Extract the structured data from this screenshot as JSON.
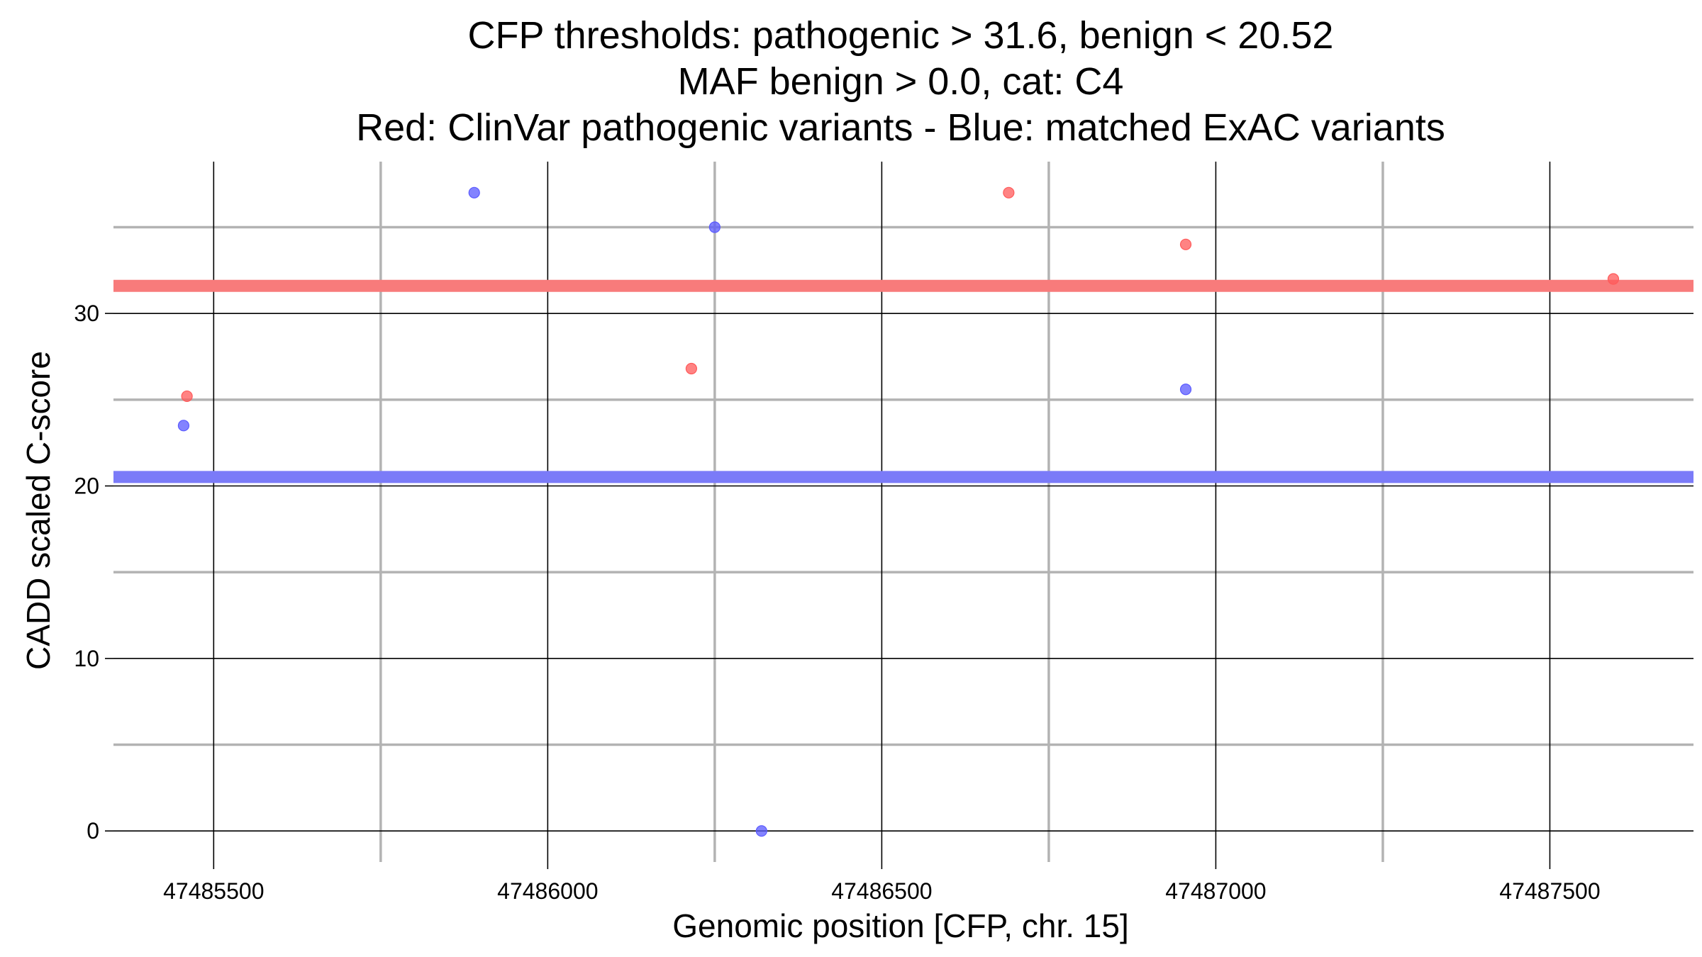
{
  "chart_data": {
    "type": "scatter",
    "title_lines": [
      "CFP thresholds: pathogenic > 31.6, benign < 20.52",
      "MAF benign > 0.0, cat: C4",
      "Red: ClinVar pathogenic variants - Blue: matched ExAC variants"
    ],
    "xlabel": "Genomic position [CFP, chr. 15]",
    "ylabel": "CADD scaled C-score",
    "xlim": [
      47485350,
      47487715
    ],
    "ylim": [
      -1.8,
      38.8
    ],
    "x_major_ticks": [
      47485500,
      47486000,
      47486500,
      47487000,
      47487500
    ],
    "x_tick_labels": [
      "47485500",
      "47486000",
      "47486500",
      "47487000",
      "47487500"
    ],
    "x_minor_ticks": [
      47485750,
      47486250,
      47486750,
      47487250
    ],
    "y_major_ticks": [
      0,
      10,
      20,
      30
    ],
    "y_tick_labels": [
      "0",
      "10",
      "20",
      "30"
    ],
    "y_minor_ticks": [
      5,
      15,
      25,
      35
    ],
    "thresholds": [
      {
        "name": "pathogenic",
        "value": 31.6,
        "color": "#f87b7b"
      },
      {
        "name": "benign",
        "value": 20.52,
        "color": "#7b7bf8"
      }
    ],
    "series": [
      {
        "color": "#ff5a5a",
        "points": [
          {
            "x": 47485460,
            "y": 25.2
          },
          {
            "x": 47486215,
            "y": 26.8
          },
          {
            "x": 47486690,
            "y": 37.0
          },
          {
            "x": 47486955,
            "y": 34.0
          },
          {
            "x": 47487595,
            "y": 32.0
          }
        ]
      },
      {
        "color": "#5a5aff",
        "points": [
          {
            "x": 47485455,
            "y": 23.5
          },
          {
            "x": 47485890,
            "y": 37.0
          },
          {
            "x": 47486250,
            "y": 35.0
          },
          {
            "x": 47486320,
            "y": 0.0
          },
          {
            "x": 47486955,
            "y": 25.6
          }
        ]
      }
    ],
    "grid": true,
    "legend": "none"
  }
}
